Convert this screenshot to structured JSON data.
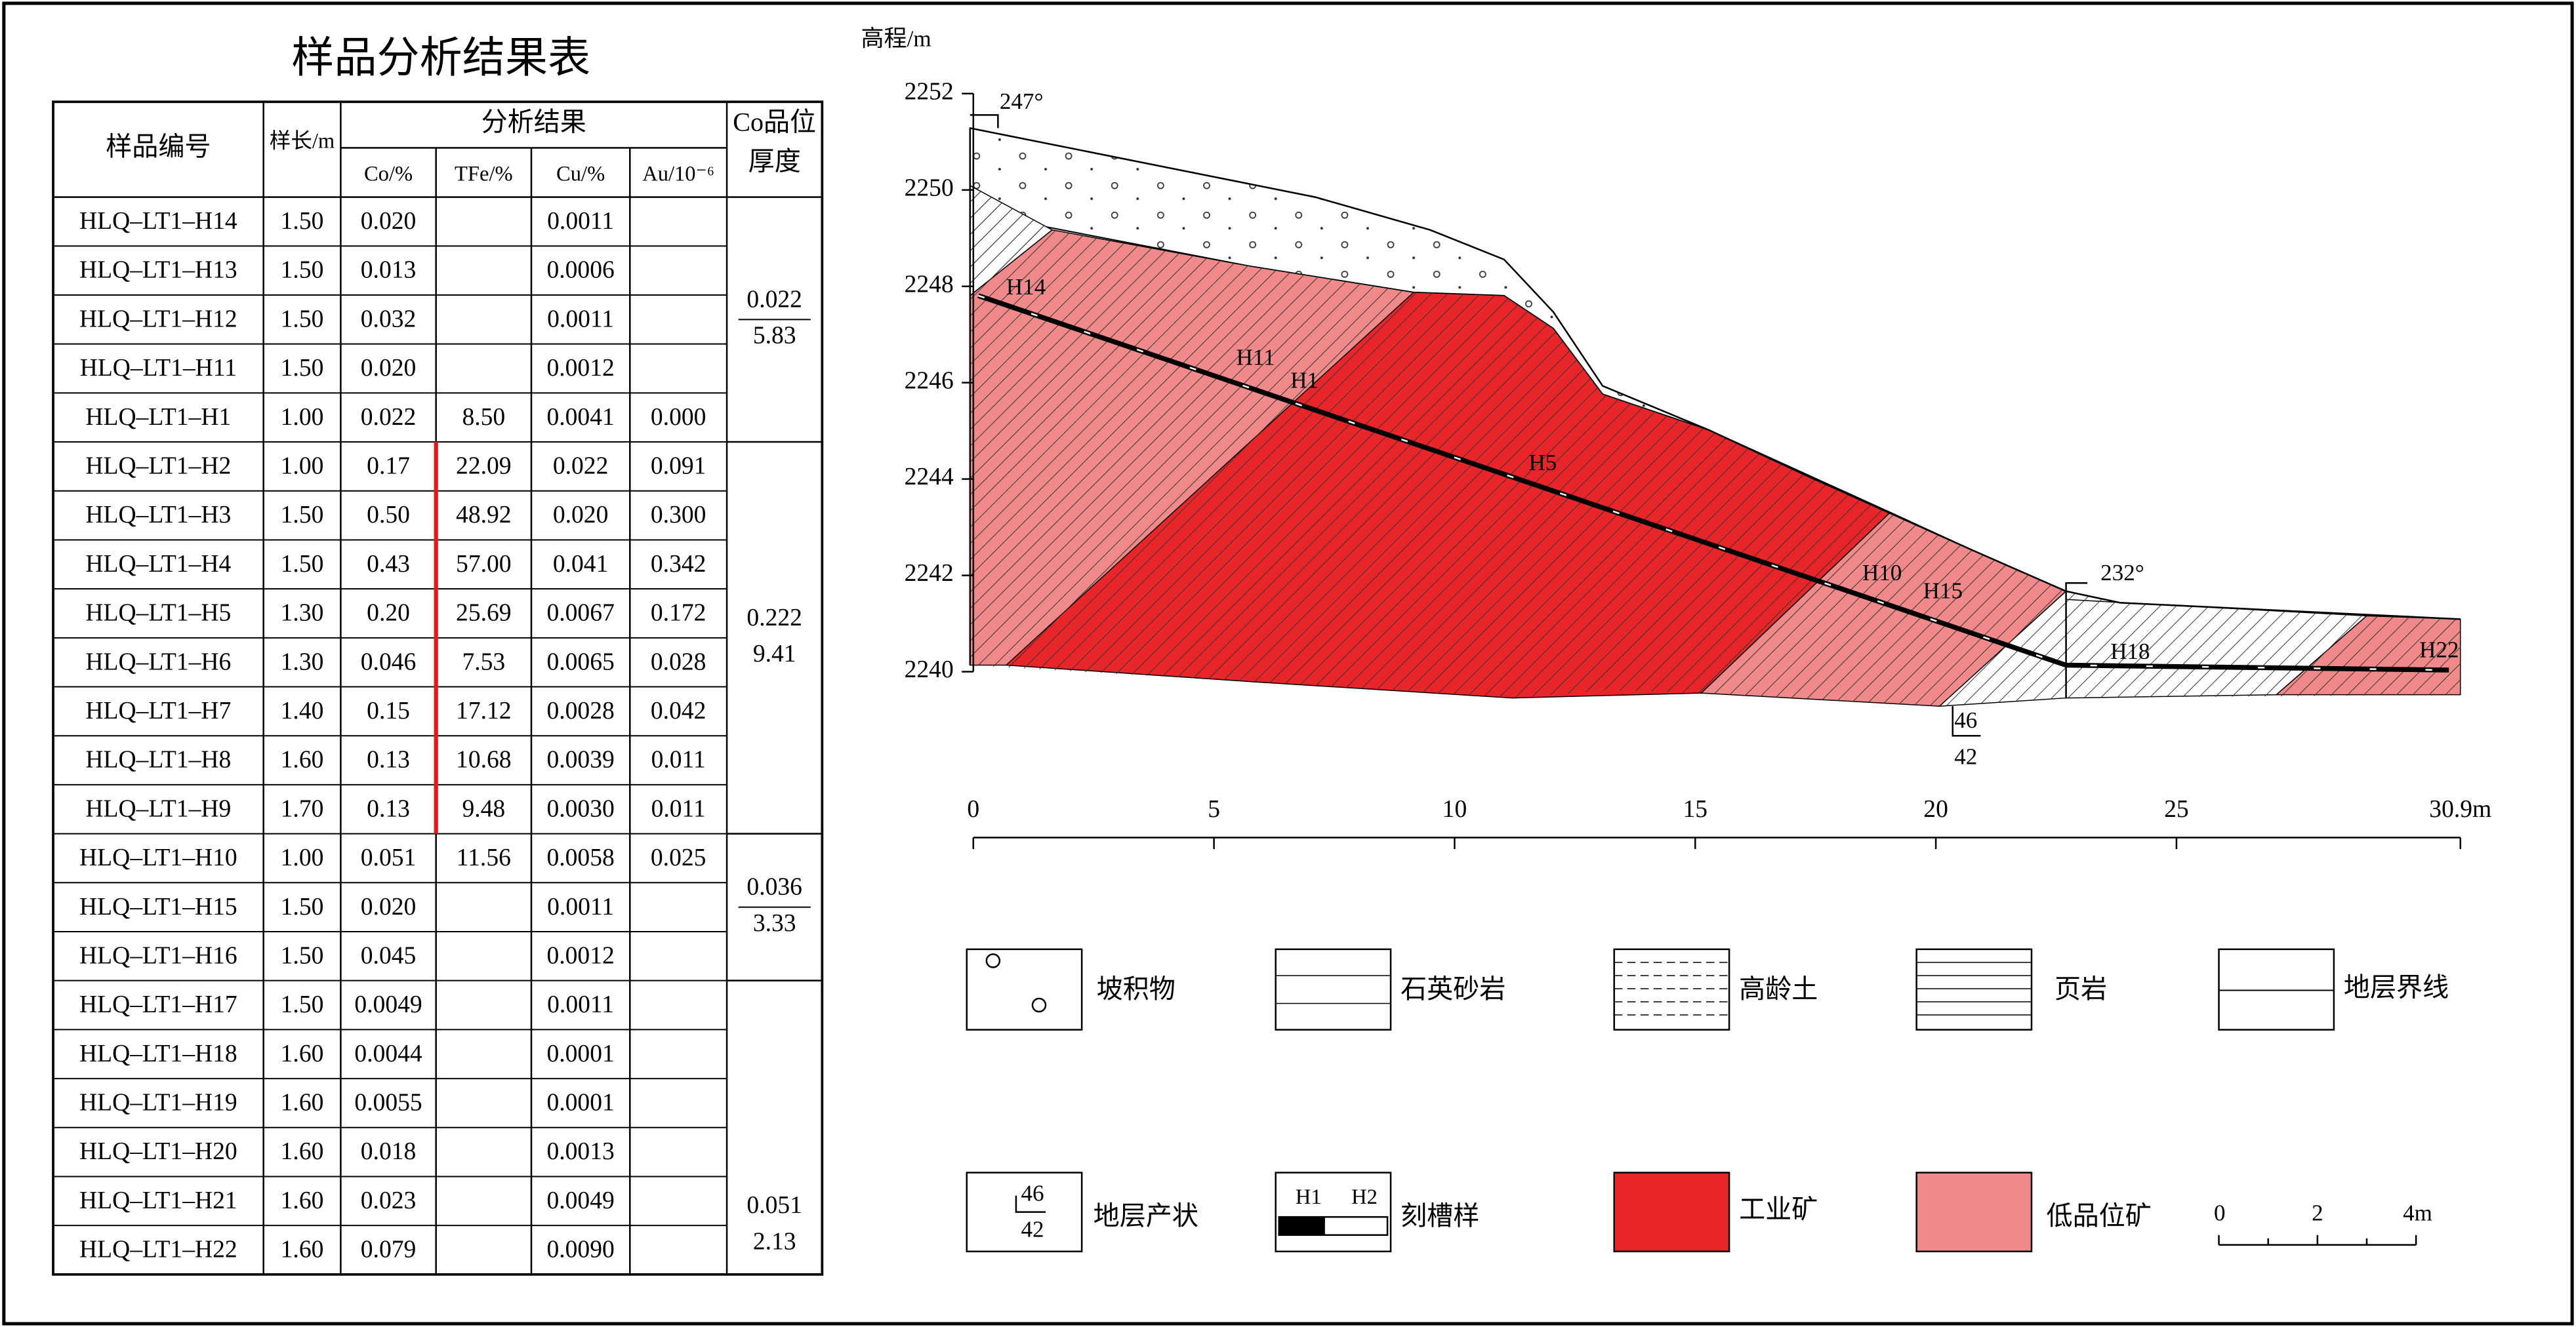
{
  "table": {
    "title": "样品分析结果表",
    "header": [
      "样品编号",
      "样长/m",
      "分析结果",
      "Co/%",
      "TFe/%",
      "Cu/%",
      "Au/10⁻⁶",
      "Co品位",
      "厚度"
    ],
    "rows": [
      [
        "HLQ–LT1–H14",
        "1.50",
        "0.020",
        null,
        "0.0011",
        null
      ],
      [
        "HLQ–LT1–H13",
        "1.50",
        "0.013",
        null,
        "0.0006",
        null
      ],
      [
        "HLQ–LT1–H12",
        "1.50",
        "0.032",
        null,
        "0.0011",
        null
      ],
      [
        "HLQ–LT1–H11",
        "1.50",
        "0.020",
        null,
        "0.0012",
        null
      ],
      [
        "HLQ–LT1–H1",
        "1.00",
        "0.022",
        "8.50",
        "0.0041",
        "0.000"
      ],
      [
        "HLQ–LT1–H2",
        "1.00",
        "0.17",
        "22.09",
        "0.022",
        "0.091"
      ],
      [
        "HLQ–LT1–H3",
        "1.50",
        "0.50",
        "48.92",
        "0.020",
        "0.300"
      ],
      [
        "HLQ–LT1–H4",
        "1.50",
        "0.43",
        "57.00",
        "0.041",
        "0.342"
      ],
      [
        "HLQ–LT1–H5",
        "1.30",
        "0.20",
        "25.69",
        "0.0067",
        "0.172"
      ],
      [
        "HLQ–LT1–H6",
        "1.30",
        "0.046",
        "7.53",
        "0.0065",
        "0.028"
      ],
      [
        "HLQ–LT1–H7",
        "1.40",
        "0.15",
        "17.12",
        "0.0028",
        "0.042"
      ],
      [
        "HLQ–LT1–H8",
        "1.60",
        "0.13",
        "10.68",
        "0.0039",
        "0.011"
      ],
      [
        "HLQ–LT1–H9",
        "1.70",
        "0.13",
        "9.48",
        "0.0030",
        "0.011"
      ],
      [
        "HLQ–LT1–H10",
        "1.00",
        "0.051",
        "11.56",
        "0.0058",
        "0.025"
      ],
      [
        "HLQ–LT1–H15",
        "1.50",
        "0.020",
        null,
        "0.0011",
        null
      ],
      [
        "HLQ–LT1–H16",
        "1.50",
        "0.045",
        null,
        "0.0012",
        null
      ],
      [
        "HLQ–LT1–H17",
        "1.50",
        "0.0049",
        null,
        "0.0011",
        null
      ],
      [
        "HLQ–LT1–H18",
        "1.60",
        "0.0044",
        null,
        "0.0001",
        null
      ],
      [
        "HLQ–LT1–H19",
        "1.60",
        "0.0055",
        null,
        "0.0001",
        null
      ],
      [
        "HLQ–LT1–H20",
        "1.60",
        "0.018",
        null,
        "0.0013",
        null
      ],
      [
        "HLQ–LT1–H21",
        "1.60",
        "0.023",
        null,
        "0.0049",
        null
      ],
      [
        "HLQ–LT1–H22",
        "1.60",
        "0.079",
        null,
        "0.0090",
        null
      ]
    ],
    "grades": [
      [
        "0.022",
        "5.83"
      ],
      [
        "0.222",
        "9.41"
      ],
      [
        "0.036",
        "3.33"
      ],
      [
        "0.051",
        "2.13"
      ]
    ]
  },
  "section": {
    "y_label": "高程/m",
    "yticks": [
      2240,
      2242,
      2244,
      2246,
      2248,
      2250,
      2252
    ],
    "xticks": [
      0,
      5,
      10,
      15,
      20,
      25,
      {
        "value": 30.9,
        "label": "30.9m"
      }
    ],
    "samples": [
      "H14",
      "H11",
      "H1",
      "H5",
      "H10",
      "H15",
      "H18",
      "H22"
    ],
    "attitudes": [
      "247°",
      "232°"
    ],
    "dip": [
      "46",
      "42"
    ]
  },
  "legend": {
    "items": [
      "坡积物",
      "石英砂岩",
      "高龄土",
      "页岩",
      "地层界线",
      "地层产状",
      "刻槽样",
      "工业矿",
      "低品位矿"
    ],
    "attitude_symbol": [
      "46",
      "42"
    ],
    "channel_symbol": [
      "H1",
      "H2"
    ],
    "scale_bar": [
      "0",
      "2",
      "4m"
    ]
  }
}
